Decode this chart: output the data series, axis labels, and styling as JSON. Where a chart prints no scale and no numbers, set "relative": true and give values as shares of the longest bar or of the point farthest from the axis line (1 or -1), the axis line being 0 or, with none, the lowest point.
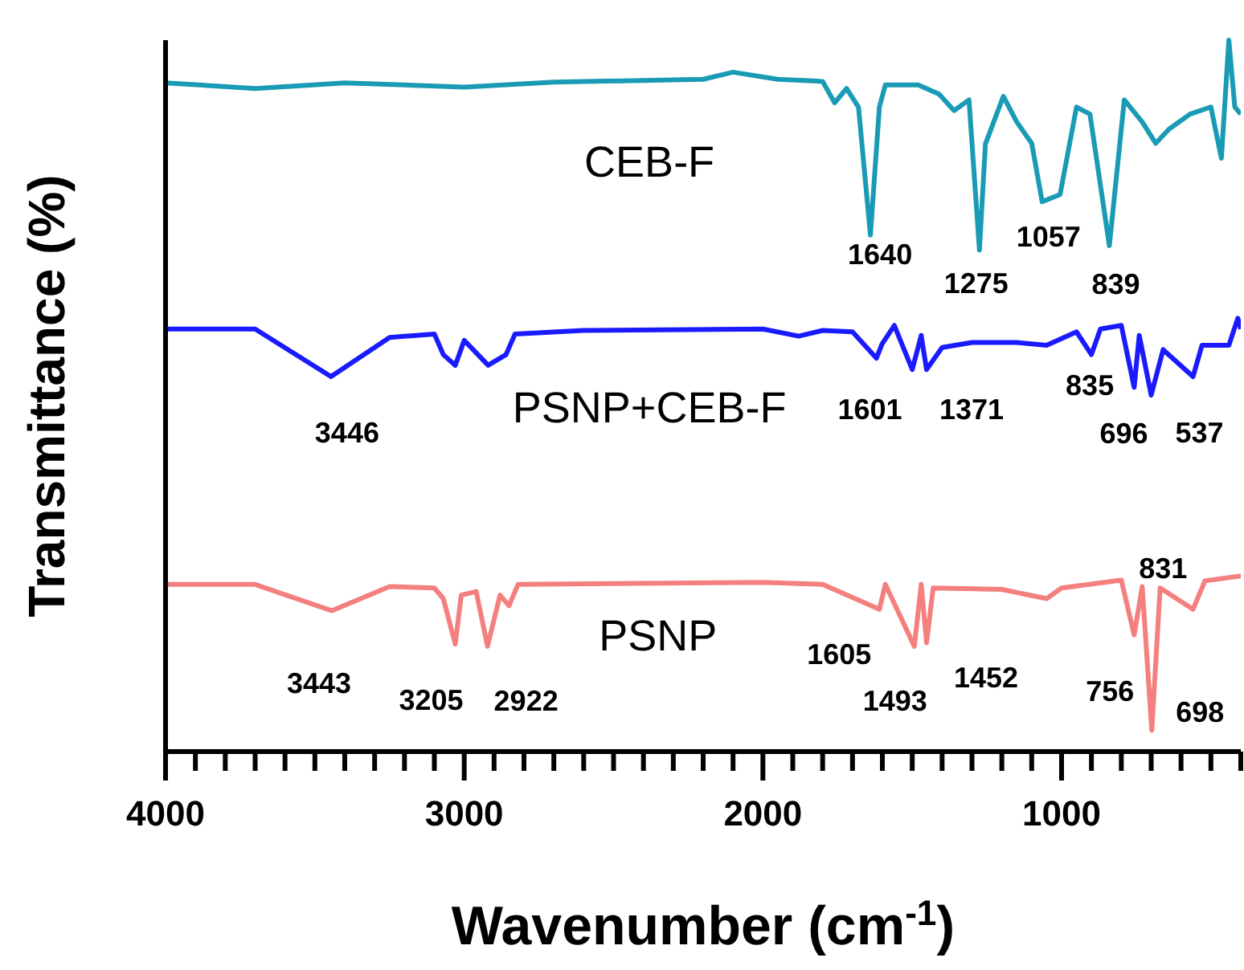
{
  "chart_data": {
    "type": "line",
    "relative": true,
    "xlabel": "Wavenumber (cm$^{-1}$)",
    "ylabel": "Transmittance (%)",
    "xlim": [
      4000,
      400
    ],
    "xticks": [
      4000,
      {
        "value": 3900,
        "label": null
      },
      {
        "value": 3800,
        "label": null
      },
      {
        "value": 3700,
        "label": null
      },
      {
        "value": 3600,
        "label": null
      },
      {
        "value": 3500,
        "label": null
      },
      {
        "value": 3400,
        "label": null
      },
      {
        "value": 3300,
        "label": null
      },
      {
        "value": 3200,
        "label": null
      },
      {
        "value": 3100,
        "label": null
      },
      3000,
      {
        "value": 2900,
        "label": null
      },
      {
        "value": 2800,
        "label": null
      },
      {
        "value": 2700,
        "label": null
      },
      {
        "value": 2600,
        "label": null
      },
      {
        "value": 2500,
        "label": null
      },
      {
        "value": 2400,
        "label": null
      },
      {
        "value": 2300,
        "label": null
      },
      {
        "value": 2200,
        "label": null
      },
      {
        "value": 2100,
        "label": null
      },
      2000,
      {
        "value": 1900,
        "label": null
      },
      {
        "value": 1800,
        "label": null
      },
      {
        "value": 1700,
        "label": null
      },
      {
        "value": 1600,
        "label": null
      },
      {
        "value": 1500,
        "label": null
      },
      {
        "value": 1400,
        "label": null
      },
      {
        "value": 1300,
        "label": null
      },
      {
        "value": 1200,
        "label": null
      },
      {
        "value": 1100,
        "label": null
      },
      1000,
      {
        "value": 900,
        "label": null
      },
      {
        "value": 800,
        "label": null
      },
      {
        "value": 700,
        "label": null
      },
      {
        "value": 600,
        "label": null
      },
      {
        "value": 500,
        "label": null
      },
      {
        "value": 400,
        "label": null
      }
    ],
    "series": [
      {
        "name": "CEB-F",
        "color": "#1a9bb5",
        "x": [
          4000,
          3700,
          3400,
          3000,
          2700,
          2200,
          2100,
          1950,
          1800,
          1760,
          1720,
          1680,
          1640,
          1610,
          1590,
          1480,
          1410,
          1360,
          1310,
          1275,
          1255,
          1195,
          1150,
          1100,
          1065,
          1005,
          950,
          905,
          840,
          790,
          730,
          685,
          640,
          570,
          500,
          465,
          440,
          420,
          400
        ],
        "values": [
          0.94,
          0.932,
          0.94,
          0.934,
          0.941,
          0.945,
          0.955,
          0.945,
          0.942,
          0.912,
          0.932,
          0.906,
          0.726,
          0.906,
          0.937,
          0.937,
          0.924,
          0.901,
          0.916,
          0.705,
          0.854,
          0.921,
          0.885,
          0.855,
          0.773,
          0.783,
          0.906,
          0.896,
          0.711,
          0.916,
          0.885,
          0.855,
          0.875,
          0.896,
          0.906,
          0.834,
          1.0,
          0.906,
          0.896
        ]
      },
      {
        "name": "PSNP+CEB-F",
        "color": "#1a1aff",
        "x": [
          4000,
          3700,
          3446,
          3250,
          3100,
          3070,
          3030,
          3000,
          2920,
          2860,
          2830,
          2600,
          2000,
          1880,
          1800,
          1700,
          1620,
          1601,
          1560,
          1500,
          1470,
          1452,
          1400,
          1300,
          1150,
          1050,
          950,
          900,
          870,
          800,
          757,
          740,
          700,
          660,
          560,
          530,
          440,
          410,
          400
        ],
        "values": [
          0.594,
          0.594,
          0.527,
          0.582,
          0.587,
          0.558,
          0.543,
          0.578,
          0.543,
          0.558,
          0.587,
          0.592,
          0.594,
          0.584,
          0.592,
          0.59,
          0.553,
          0.573,
          0.599,
          0.537,
          0.585,
          0.537,
          0.568,
          0.575,
          0.575,
          0.571,
          0.59,
          0.558,
          0.594,
          0.599,
          0.512,
          0.585,
          0.501,
          0.565,
          0.527,
          0.571,
          0.571,
          0.609,
          0.594
        ]
      },
      {
        "name": "PSNP",
        "color": "#f47f7f",
        "x": [
          4000,
          3700,
          3443,
          3250,
          3100,
          3070,
          3030,
          3010,
          2960,
          2922,
          2880,
          2850,
          2820,
          2000,
          1800,
          1610,
          1590,
          1493,
          1470,
          1452,
          1430,
          1200,
          1050,
          1000,
          800,
          757,
          730,
          698,
          670,
          560,
          520,
          400
        ],
        "values": [
          0.235,
          0.235,
          0.198,
          0.232,
          0.23,
          0.215,
          0.151,
          0.22,
          0.225,
          0.148,
          0.22,
          0.205,
          0.235,
          0.238,
          0.235,
          0.2,
          0.235,
          0.148,
          0.235,
          0.153,
          0.23,
          0.228,
          0.215,
          0.23,
          0.241,
          0.164,
          0.232,
          0.03,
          0.23,
          0.2,
          0.24,
          0.247
        ]
      }
    ],
    "annotations": [
      {
        "text": "1640",
        "x": 1640,
        "y": 0.726
      },
      {
        "text": "1275",
        "x": 1275,
        "y": 0.705
      },
      {
        "text": "1057",
        "x": 1065,
        "y": 0.773
      },
      {
        "text": "839",
        "x": 840,
        "y": 0.711
      },
      {
        "text": "3446",
        "x": 3446,
        "y": 0.527
      },
      {
        "text": "1601",
        "x": 1620,
        "y": 0.553
      },
      {
        "text": "1371",
        "x": 1452,
        "y": 0.537
      },
      {
        "text": "835",
        "x": 900,
        "y": 0.558
      },
      {
        "text": "696",
        "x": 700,
        "y": 0.501
      },
      {
        "text": "537",
        "x": 560,
        "y": 0.527
      },
      {
        "text": "3443",
        "x": 3443,
        "y": 0.198
      },
      {
        "text": "3205",
        "x": 3030,
        "y": 0.151
      },
      {
        "text": "2922",
        "x": 2922,
        "y": 0.148
      },
      {
        "text": "1605",
        "x": 1610,
        "y": 0.2
      },
      {
        "text": "1493",
        "x": 1493,
        "y": 0.148
      },
      {
        "text": "1452",
        "x": 1452,
        "y": 0.153
      },
      {
        "text": "831",
        "x": 800,
        "y": 0.241
      },
      {
        "text": "756",
        "x": 757,
        "y": 0.164
      },
      {
        "text": "698",
        "x": 698,
        "y": 0.03
      }
    ]
  }
}
